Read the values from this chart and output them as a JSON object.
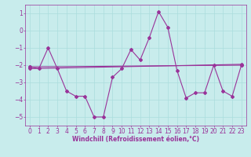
{
  "xlabel": "Windchill (Refroidissement éolien,°C)",
  "bg_color": "#c8ecec",
  "line_color": "#993399",
  "grid_color": "#aadddd",
  "xlim": [
    -0.5,
    23.5
  ],
  "ylim": [
    -5.5,
    1.5
  ],
  "yticks": [
    1,
    0,
    -1,
    -2,
    -3,
    -4,
    -5
  ],
  "xticks": [
    0,
    1,
    2,
    3,
    4,
    5,
    6,
    7,
    8,
    9,
    10,
    11,
    12,
    13,
    14,
    15,
    16,
    17,
    18,
    19,
    20,
    21,
    22,
    23
  ],
  "series_main": {
    "x": [
      0,
      1,
      2,
      3,
      4,
      5,
      6,
      7,
      8,
      9,
      10,
      11,
      12,
      13,
      14,
      15,
      16,
      17,
      18,
      19,
      20,
      21,
      22,
      23
    ],
    "y": [
      -2.1,
      -2.2,
      -1.0,
      -2.2,
      -3.5,
      -3.8,
      -3.8,
      -5.0,
      -5.0,
      -2.7,
      -2.2,
      -1.1,
      -1.7,
      -0.4,
      1.1,
      0.2,
      -2.3,
      -3.9,
      -3.6,
      -3.6,
      -2.0,
      -3.5,
      -3.8,
      -2.0
    ]
  },
  "series_line1": {
    "x": [
      0,
      23
    ],
    "y": [
      -2.1,
      -2.0
    ]
  },
  "series_line2": {
    "x": [
      0,
      23
    ],
    "y": [
      -2.2,
      -1.95
    ]
  },
  "xlabel_fontsize": 5.5,
  "tick_fontsize": 5.5,
  "marker": "D",
  "markersize": 2,
  "linewidth": 0.8
}
